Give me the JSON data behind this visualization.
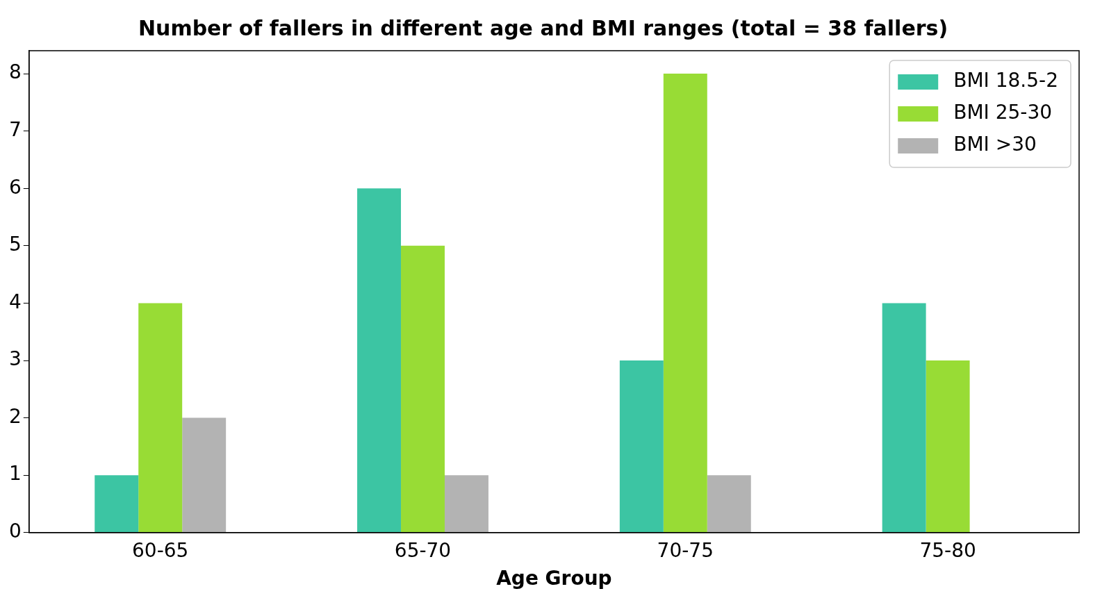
{
  "chart_data": {
    "type": "bar",
    "title": "Number of fallers in different age and BMI ranges (total = 38 fallers)",
    "xlabel": "Age Group",
    "categories": [
      "60-65",
      "65-70",
      "70-75",
      "75-80"
    ],
    "series": [
      {
        "name": "BMI 18.5-2",
        "color": "#3cc5a3",
        "values": [
          1,
          6,
          3,
          4
        ]
      },
      {
        "name": "BMI 25-30",
        "color": "#98dc35",
        "values": [
          4,
          5,
          8,
          3
        ]
      },
      {
        "name": "BMI >30",
        "color": "#b3b3b3",
        "values": [
          2,
          1,
          1,
          0
        ]
      }
    ],
    "ylim": [
      0,
      8.4
    ],
    "yticks": [
      0,
      1,
      2,
      3,
      4,
      5,
      6,
      7,
      8
    ],
    "grid": false,
    "legend": "top right"
  }
}
